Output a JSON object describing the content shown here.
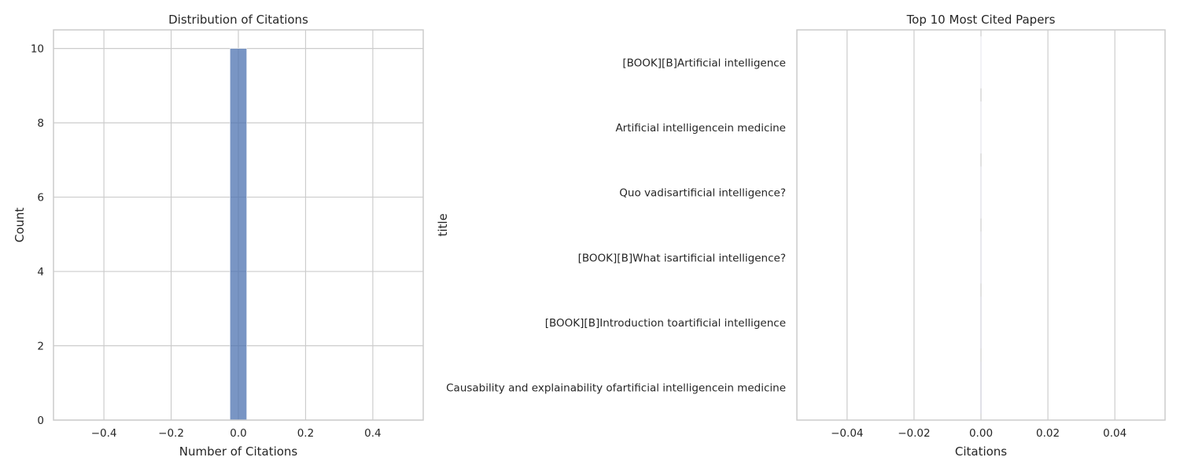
{
  "chart_data": [
    {
      "type": "bar",
      "subtype": "histogram",
      "title": "Distribution of Citations",
      "xlabel": "Number of Citations",
      "ylabel": "Count",
      "xlim": [
        -0.55,
        0.55
      ],
      "ylim": [
        0,
        10.5
      ],
      "xticks": [
        -0.4,
        -0.2,
        0.0,
        0.2,
        0.4
      ],
      "xtick_labels": [
        "−0.4",
        "−0.2",
        "0.0",
        "0.2",
        "0.4"
      ],
      "yticks": [
        0,
        2,
        4,
        6,
        8,
        10
      ],
      "ytick_labels": [
        "0",
        "2",
        "4",
        "6",
        "8",
        "10"
      ],
      "bins": [
        {
          "x_start": -0.025,
          "x_end": 0.025,
          "count": 10
        }
      ],
      "grid": true,
      "color": "#4c72b0"
    },
    {
      "type": "bar",
      "orientation": "horizontal",
      "title": "Top 10 Most Cited Papers",
      "xlabel": "Citations",
      "ylabel": "title",
      "xlim": [
        -0.055,
        0.055
      ],
      "xticks": [
        -0.04,
        -0.02,
        0.0,
        0.02,
        0.04
      ],
      "xtick_labels": [
        "−0.04",
        "−0.02",
        "0.00",
        "0.02",
        "0.04"
      ],
      "categories": [
        "[BOOK][B]Artificial intelligence",
        "Artificial intelligencein medicine",
        "Quo vadisartificial intelligence?",
        "[BOOK][B]What isartificial intelligence?",
        "[BOOK][B]Introduction toartificial intelligence",
        "Causability and explainability ofartificial intelligencein medicine"
      ],
      "values": [
        0,
        0,
        0,
        0,
        0,
        0
      ],
      "grid": true
    }
  ]
}
